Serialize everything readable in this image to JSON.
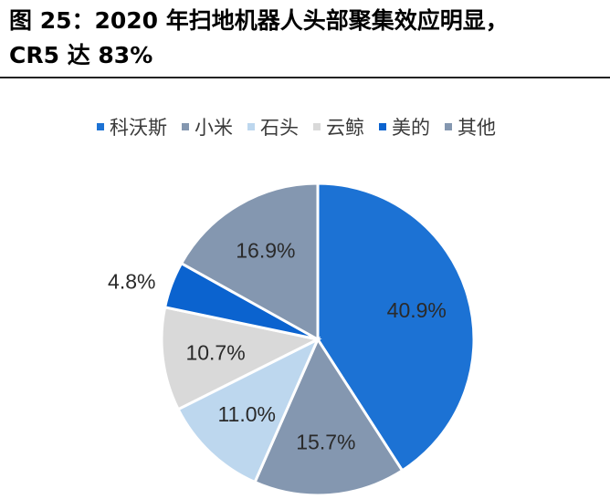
{
  "header": {
    "title_line1": "图 25：2020 年扫地机器人头部聚集效应明显，",
    "title_line2": "CR5 达 83%"
  },
  "chart_data": {
    "type": "pie",
    "categories": [
      "科沃斯",
      "小米",
      "石头",
      "云鲸",
      "美的",
      "其他"
    ],
    "values": [
      40.9,
      15.7,
      11.0,
      10.7,
      4.8,
      16.9
    ],
    "labels": [
      "40.9%",
      "15.7%",
      "11.0%",
      "10.7%",
      "4.8%",
      "16.9%"
    ],
    "colors": [
      "#1c72d4",
      "#8497b0",
      "#bdd7ee",
      "#d9d9d9",
      "#0b63cf",
      "#8497b0"
    ],
    "label_colors": [
      "#2a2a2a",
      "#2a2a2a",
      "#2a2a2a",
      "#2a2a2a",
      "#2a2a2a",
      "#2a2a2a"
    ],
    "start_angle_deg": 0,
    "direction": "clockwise",
    "legend_position": "top",
    "title": ""
  }
}
